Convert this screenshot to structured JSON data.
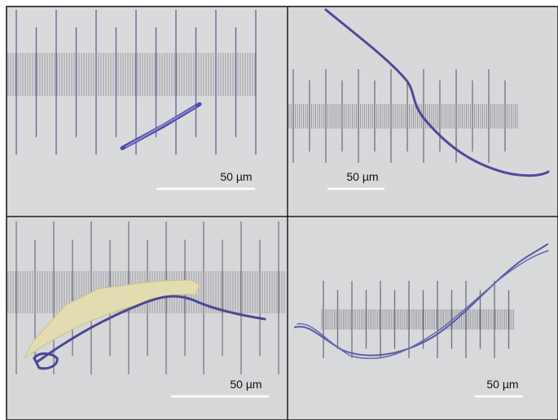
{
  "panels": [
    {
      "scale_label": "50 µm"
    },
    {
      "scale_label": "50 µm"
    },
    {
      "scale_label": "50 µm"
    },
    {
      "scale_label": "50 µm"
    }
  ]
}
